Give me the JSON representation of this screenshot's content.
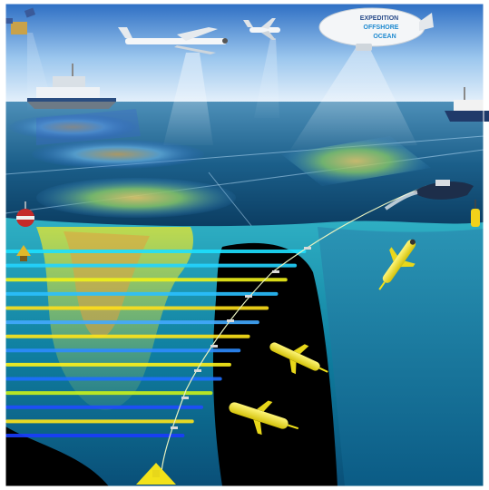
{
  "image": {
    "kind": "ocean observing system illustration",
    "colors": {
      "sky_top": "#2e6fc4",
      "sky_bottom": "#e6f1fb",
      "sea_surface": "#0d4f7a",
      "water_body": "#0b6d8e",
      "deep_water": "#000000",
      "glider": "#f2e21a",
      "beam": "#ffffff"
    }
  },
  "airship": {
    "name_line1": "EXPEDITION",
    "name_line2": "OFFSHORE",
    "name_line3": "OCEAN"
  },
  "transect_levels": [
    {
      "color": "#1de0ff"
    },
    {
      "color": "#23d4ff"
    },
    {
      "color": "#f0f21a"
    },
    {
      "color": "#2bc0ff"
    },
    {
      "color": "#ffe01a"
    },
    {
      "color": "#43aaff"
    },
    {
      "color": "#ffe51a"
    },
    {
      "color": "#2e8cff"
    },
    {
      "color": "#fff21a"
    },
    {
      "color": "#1e6fff"
    },
    {
      "color": "#c8f21a"
    },
    {
      "color": "#1f4cff"
    },
    {
      "color": "#ffe51a"
    },
    {
      "color": "#1a3cff"
    }
  ]
}
